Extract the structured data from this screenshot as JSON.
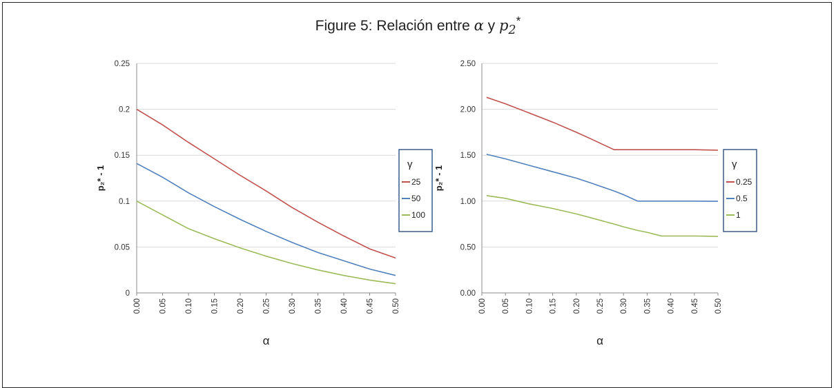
{
  "figure": {
    "title_prefix": "Figure  5: Relación entre ",
    "title_alpha": "α",
    "title_mid": " y ",
    "title_p": "p",
    "title_sub": "2",
    "title_sup": "*"
  },
  "colors": {
    "red": "#c0504d",
    "blue": "#4f81bd",
    "green": "#9bbb59",
    "grid": "#d9d9d9",
    "legend_border": "#385d8a"
  },
  "chart_data": [
    {
      "type": "line",
      "xlabel": "α",
      "ylabel": "p₂* - 1",
      "xlim": [
        0,
        0.5
      ],
      "ylim": [
        0,
        0.25
      ],
      "x_ticks": [
        "0.00",
        "0.05",
        "0.10",
        "0.15",
        "0.20",
        "0.25",
        "0.30",
        "0.35",
        "0.40",
        "0.45",
        "0.50"
      ],
      "y_ticks": [
        "0",
        "0.05",
        "0.1",
        "0.15",
        "0.2",
        "0.25"
      ],
      "legend_title": "γ",
      "legend_position": "right",
      "grid": true,
      "x": [
        0.0,
        0.05,
        0.1,
        0.15,
        0.2,
        0.25,
        0.3,
        0.35,
        0.4,
        0.45,
        0.5
      ],
      "series": [
        {
          "name": "25",
          "color": "red",
          "values": [
            0.2,
            0.183,
            0.164,
            0.146,
            0.128,
            0.111,
            0.093,
            0.077,
            0.062,
            0.048,
            0.038
          ]
        },
        {
          "name": "50",
          "color": "blue",
          "values": [
            0.141,
            0.126,
            0.109,
            0.094,
            0.08,
            0.067,
            0.055,
            0.044,
            0.035,
            0.026,
            0.019
          ]
        },
        {
          "name": "100",
          "color": "green",
          "values": [
            0.1,
            0.085,
            0.07,
            0.059,
            0.049,
            0.04,
            0.032,
            0.025,
            0.019,
            0.014,
            0.01
          ]
        }
      ]
    },
    {
      "type": "line",
      "xlabel": "α",
      "ylabel": "p₂* - 1",
      "xlim": [
        0,
        0.5
      ],
      "ylim": [
        0,
        2.5
      ],
      "x_ticks": [
        "0.00",
        "0.05",
        "0.10",
        "0.15",
        "0.20",
        "0.25",
        "0.30",
        "0.35",
        "0.40",
        "0.45",
        "0.50"
      ],
      "y_ticks": [
        "0.00",
        "0.50",
        "1.00",
        "1.50",
        "2.00",
        "2.50"
      ],
      "legend_title": "γ",
      "legend_position": "right",
      "grid": true,
      "x": [
        0.01,
        0.05,
        0.1,
        0.15,
        0.2,
        0.23,
        0.28,
        0.3,
        0.33,
        0.35,
        0.38,
        0.4,
        0.45,
        0.5
      ],
      "series": [
        {
          "name": "0.25",
          "color": "red",
          "values": [
            2.13,
            2.06,
            1.96,
            1.86,
            1.75,
            1.68,
            1.56,
            1.56,
            1.56,
            1.56,
            1.56,
            1.56,
            1.56,
            1.555
          ]
        },
        {
          "name": "0.5",
          "color": "blue",
          "values": [
            1.51,
            1.46,
            1.39,
            1.32,
            1.25,
            1.2,
            1.11,
            1.07,
            1.0,
            1.0,
            1.0,
            1.0,
            1.0,
            0.998
          ]
        },
        {
          "name": "1",
          "color": "green",
          "values": [
            1.06,
            1.03,
            0.97,
            0.92,
            0.86,
            0.82,
            0.75,
            0.72,
            0.68,
            0.66,
            0.62,
            0.62,
            0.62,
            0.615
          ]
        }
      ]
    }
  ]
}
